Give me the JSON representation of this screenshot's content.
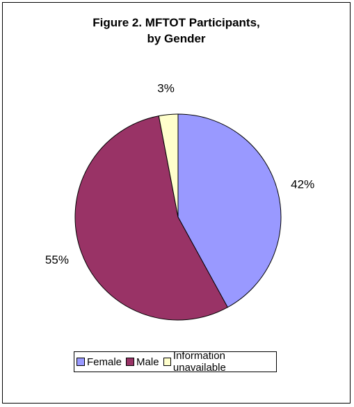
{
  "chart_data": {
    "type": "pie",
    "title_line1": "Figure 2. MFTOT Participants,",
    "title_line2": "by Gender",
    "slices": [
      {
        "label": "Female",
        "value": 42,
        "display": "42%",
        "color": "#9999ff"
      },
      {
        "label": "Male",
        "value": 55,
        "display": "55%",
        "color": "#993366"
      },
      {
        "label": "Information unavailable",
        "value": 3,
        "display": "3%",
        "color": "#ffffcc"
      }
    ],
    "legend_position": "bottom"
  }
}
